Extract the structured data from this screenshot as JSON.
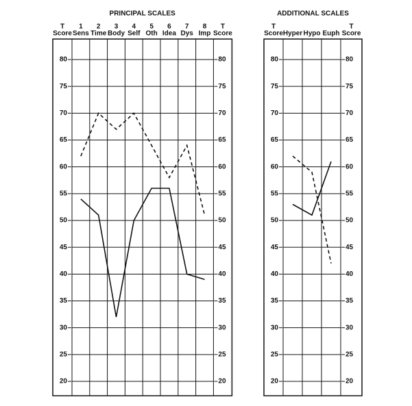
{
  "chart_data": [
    {
      "type": "line",
      "title": "PRINCIPAL SCALES",
      "y_label_top": "T",
      "y_label_bottom": "Score",
      "category_numbers": [
        "1",
        "2",
        "3",
        "4",
        "5",
        "6",
        "7",
        "8"
      ],
      "categories": [
        "Sens",
        "Time",
        "Body",
        "Self",
        "Oth",
        "Idea",
        "Dys",
        "Imp"
      ],
      "series": [
        {
          "color": "#111111",
          "dashed": true,
          "values": [
            62,
            70,
            67,
            70,
            64,
            58,
            64,
            51
          ]
        },
        {
          "color": "#111111",
          "dashed": false,
          "values": [
            54,
            51,
            32,
            50,
            56,
            56,
            40,
            39
          ]
        }
      ],
      "ylim": [
        18,
        82
      ],
      "yticks": [
        20,
        25,
        30,
        35,
        40,
        45,
        50,
        55,
        60,
        65,
        70,
        75,
        80
      ],
      "grid": true
    },
    {
      "type": "line",
      "title": "ADDITIONAL SCALES",
      "y_label_top": "T",
      "y_label_bottom": "Score",
      "categories": [
        "Hyper",
        "Hypo",
        "Euph"
      ],
      "series": [
        {
          "color": "#111111",
          "dashed": true,
          "values": [
            62,
            59,
            42
          ]
        },
        {
          "color": "#111111",
          "dashed": false,
          "values": [
            53,
            51,
            61
          ]
        }
      ],
      "ylim": [
        18,
        82
      ],
      "yticks": [
        20,
        25,
        30,
        35,
        40,
        45,
        50,
        55,
        60,
        65,
        70,
        75,
        80
      ],
      "grid": true
    }
  ]
}
